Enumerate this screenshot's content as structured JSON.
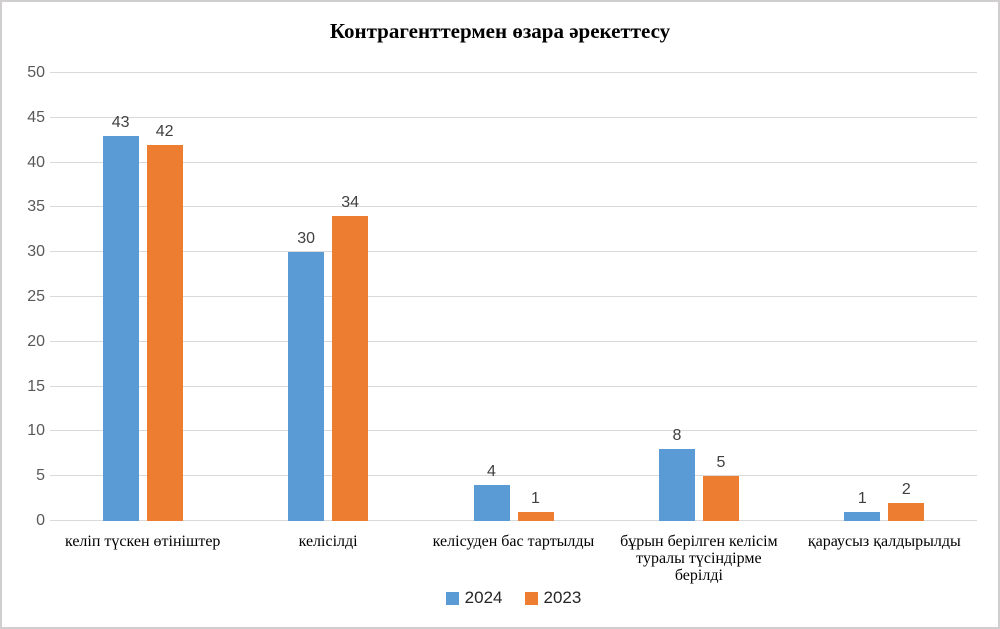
{
  "chart_data": {
    "type": "bar",
    "title": "Контрагенттермен өзара әрекеттесу",
    "categories": [
      "келіп түскен өтініштер",
      "келісілді",
      "келісуден бас тартылды",
      "бұрын берілген келісім туралы түсіндірме берілді",
      "қараусыз қалдырылды"
    ],
    "series": [
      {
        "name": "2024",
        "color": "#5B9BD5",
        "values": [
          43,
          30,
          4,
          8,
          1
        ]
      },
      {
        "name": "2023",
        "color": "#ED7D31",
        "values": [
          42,
          34,
          1,
          5,
          2
        ]
      }
    ],
    "xlabel": "",
    "ylabel": "",
    "ylim": [
      0,
      50
    ],
    "ytick_step": 5,
    "yticks": [
      0,
      5,
      10,
      15,
      20,
      25,
      30,
      35,
      40,
      45,
      50
    ],
    "grid": true,
    "legend_position": "bottom",
    "colors": {
      "gridline": "#D9D9D9",
      "tick_text": "#595959",
      "data_label": "#404040",
      "category_text": "#000000",
      "border": "#D0CECE",
      "background": "#FFFFFF"
    }
  }
}
